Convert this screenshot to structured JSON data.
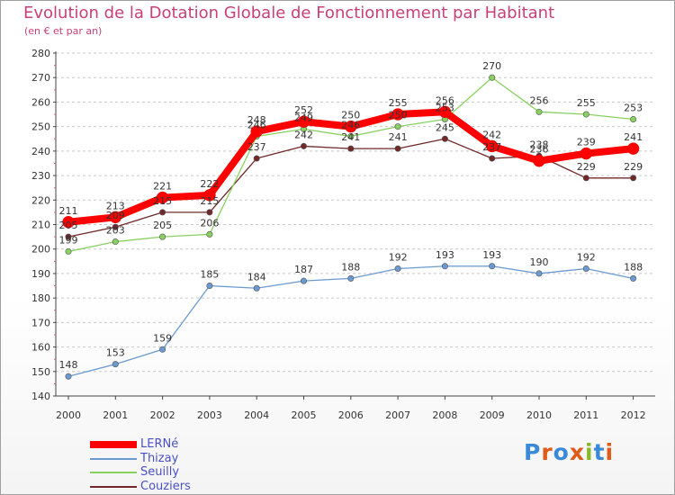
{
  "header": {
    "title": "Evolution de la Dotation Globale de Fonctionnement par Habitant",
    "subtitle": "(en € et par an)"
  },
  "brand": {
    "text": "Proxiti"
  },
  "chart_data": {
    "type": "line",
    "title": "Evolution de la Dotation Globale de Fonctionnement par Habitant",
    "subtitle": "(en € et par an)",
    "xlabel": "",
    "ylabel": "",
    "ylim": [
      140,
      280
    ],
    "ytick_step": 10,
    "grid": "horizontal dashed",
    "legend_position": "bottom-left",
    "categories": [
      "2000",
      "2001",
      "2002",
      "2003",
      "2004",
      "2005",
      "2006",
      "2007",
      "2008",
      "2009",
      "2010",
      "2011",
      "2012"
    ],
    "series": [
      {
        "name": "LERNé",
        "color": "#ff0000",
        "values": [
          211,
          213,
          221,
          222,
          248,
          252,
          250,
          255,
          256,
          242,
          236,
          239,
          241
        ]
      },
      {
        "name": "Thizay",
        "color": "#6a9ad0",
        "values": [
          148,
          153,
          159,
          185,
          184,
          187,
          188,
          192,
          193,
          193,
          190,
          192,
          188
        ]
      },
      {
        "name": "Seuilly",
        "color": "#88d060",
        "values": [
          199,
          203,
          205,
          206,
          246,
          249,
          246,
          250,
          253,
          270,
          256,
          255,
          253
        ]
      },
      {
        "name": "Couziers",
        "color": "#702828",
        "values": [
          205,
          209,
          215,
          215,
          237,
          242,
          241,
          241,
          245,
          237,
          238,
          229,
          229
        ]
      }
    ]
  }
}
